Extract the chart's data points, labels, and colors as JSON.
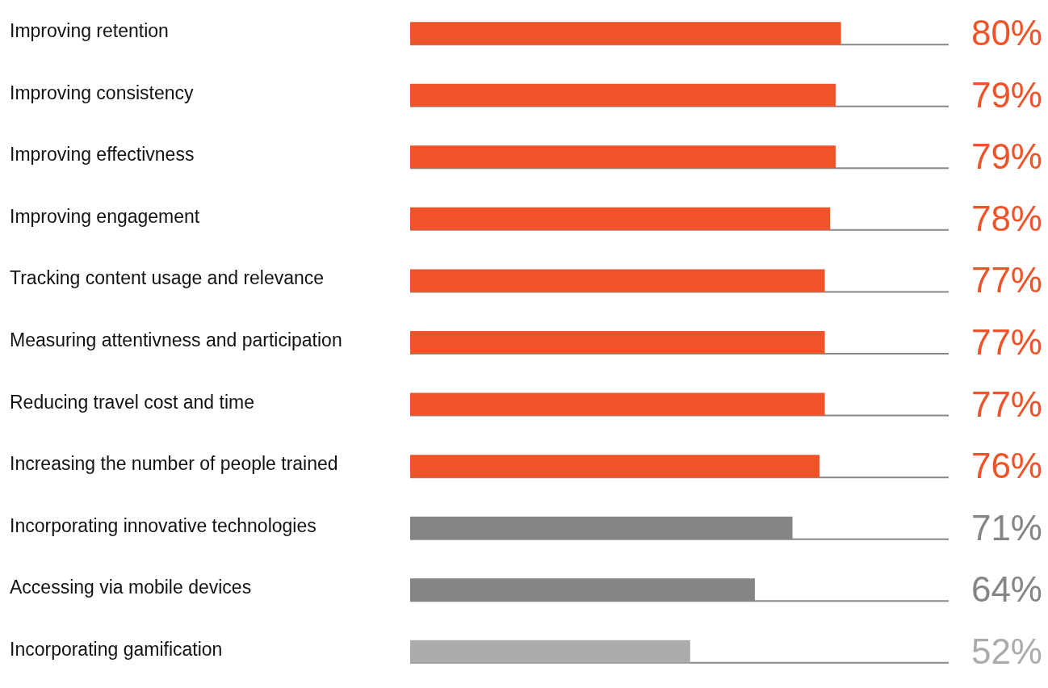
{
  "chart_data": {
    "type": "bar",
    "orientation": "horizontal",
    "categories": [
      "Improving retention",
      "Improving consistency",
      "Improving effectivness",
      "Improving engagement",
      "Tracking content usage and relevance",
      "Measuring attentivness and participation",
      "Reducing travel cost and time",
      "Increasing the number of people trained",
      "Incorporating innovative technologies",
      "Accessing via mobile devices",
      "Incorporating gamification"
    ],
    "values": [
      80,
      79,
      79,
      78,
      77,
      77,
      77,
      76,
      71,
      64,
      52
    ],
    "colors": [
      "#f05327",
      "#f05327",
      "#f05327",
      "#f05327",
      "#f05327",
      "#f05327",
      "#f05327",
      "#f05327",
      "#858585",
      "#858585",
      "#ababab"
    ],
    "value_labels": [
      "80%",
      "79%",
      "79%",
      "78%",
      "77%",
      "77%",
      "77%",
      "76%",
      "71%",
      "64%",
      "52%"
    ],
    "xlim": [
      0,
      100
    ],
    "tick_labels": "y",
    "grid": false
  }
}
